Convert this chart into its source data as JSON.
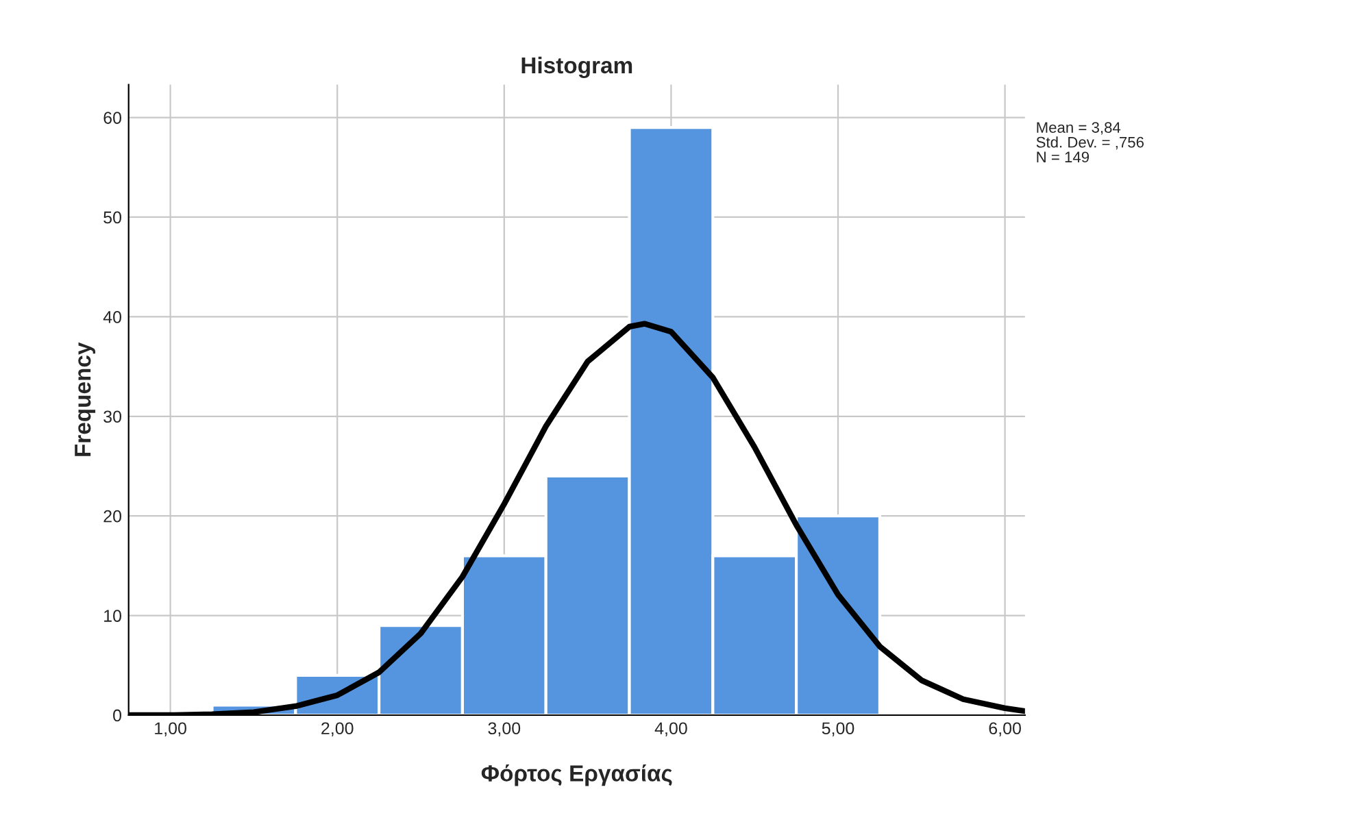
{
  "chart_data": {
    "type": "histogram",
    "title": "Histogram",
    "xlabel": "Φόρτος Εργασίας",
    "ylabel": "Frequency",
    "bins": [
      1.25,
      1.75,
      2.25,
      2.75,
      3.25,
      3.75,
      4.25,
      4.75,
      5.25
    ],
    "series": [
      {
        "color": "#5595e0",
        "values": [
          1,
          4,
          9,
          16,
          24,
          59,
          16,
          20
        ]
      },
      {
        "type": "line",
        "color": "#000000",
        "x": [
          0.75,
          1.0,
          1.25,
          1.5,
          1.75,
          2.0,
          2.25,
          2.5,
          2.75,
          3.0,
          3.25,
          3.5,
          3.75,
          3.84,
          4.0,
          4.25,
          4.5,
          4.75,
          5.0,
          5.25,
          5.5,
          5.75,
          6.0,
          6.12
        ],
        "values": [
          0.0,
          0.0,
          0.1,
          0.3,
          0.9,
          2.0,
          4.3,
          8.2,
          13.9,
          21.2,
          29.0,
          35.5,
          39.0,
          39.3,
          38.5,
          33.9,
          26.9,
          19.1,
          12.1,
          6.9,
          3.5,
          1.6,
          0.7,
          0.4
        ]
      }
    ],
    "xlim": [
      0.75,
      6.12
    ],
    "ylim": [
      0,
      63.3
    ],
    "xticks": [
      {
        "value": 1,
        "label": "1,00"
      },
      {
        "value": 2,
        "label": "2,00"
      },
      {
        "value": 3,
        "label": "3,00"
      },
      {
        "value": 4,
        "label": "4,00"
      },
      {
        "value": 5,
        "label": "5,00"
      },
      {
        "value": 6,
        "label": "6,00"
      }
    ],
    "yticks": [
      0,
      10,
      20,
      30,
      40,
      50,
      60
    ],
    "grid": true,
    "annotations": [
      "Mean = 3,84",
      "Std. Dev. = ,756",
      "N = 149"
    ]
  }
}
